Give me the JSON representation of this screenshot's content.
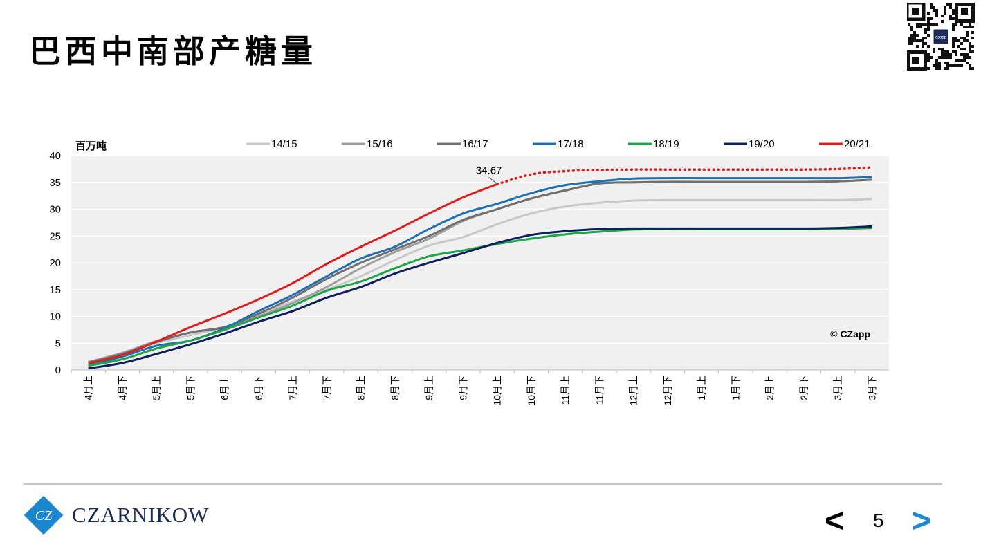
{
  "slide": {
    "title": "巴西中南部产糖量",
    "page_number": "5",
    "prev_label": "<",
    "next_label": ">",
    "brand": "CZARNIKOW",
    "qr_badge": "czapp"
  },
  "chart_data": {
    "type": "line",
    "title": "",
    "xlabel": "",
    "ylabel": "百万吨",
    "ylim": [
      0,
      40
    ],
    "yticks": [
      0,
      5,
      10,
      15,
      20,
      25,
      30,
      35,
      40
    ],
    "grid": true,
    "legend_position": "top",
    "watermark": "© CZapp",
    "categories": [
      "4月上",
      "4月下",
      "5月上",
      "5月下",
      "6月上",
      "6月下",
      "7月上",
      "7月下",
      "8月上",
      "8月下",
      "9月上",
      "9月下",
      "10月上",
      "10月下",
      "11月上",
      "11月下",
      "12月上",
      "12月下",
      "1月上",
      "1月下",
      "2月上",
      "2月下",
      "3月上",
      "3月下"
    ],
    "series": [
      {
        "name": "14/15",
        "color": "#c8c8c8",
        "values": [
          1.5,
          3.0,
          5.0,
          6.5,
          8.0,
          10.2,
          12.8,
          15.0,
          17.5,
          20.5,
          23.2,
          24.8,
          27.2,
          29.2,
          30.5,
          31.2,
          31.6,
          31.7,
          31.7,
          31.7,
          31.7,
          31.7,
          31.7,
          31.9
        ]
      },
      {
        "name": "15/16",
        "color": "#a0a0a0",
        "values": [
          1.5,
          3.2,
          5.4,
          7.0,
          8.0,
          10.0,
          12.5,
          15.5,
          19.0,
          22.0,
          24.5,
          27.8,
          30.0,
          32.0,
          33.5,
          34.8,
          35.0,
          35.1,
          35.1,
          35.1,
          35.1,
          35.1,
          35.2,
          35.5
        ]
      },
      {
        "name": "16/17",
        "color": "#707070",
        "values": [
          1.4,
          3.0,
          5.2,
          7.0,
          8.0,
          10.5,
          13.5,
          17.0,
          20.0,
          22.5,
          25.0,
          28.0,
          30.0,
          32.0,
          33.5,
          34.8,
          35.0,
          35.1,
          35.1,
          35.1,
          35.1,
          35.1,
          35.2,
          35.5
        ]
      },
      {
        "name": "17/18",
        "color": "#1f6fb5",
        "values": [
          0.8,
          2.5,
          4.5,
          5.5,
          7.8,
          11.0,
          14.0,
          17.5,
          20.8,
          23.0,
          26.3,
          29.2,
          31.0,
          33.0,
          34.5,
          35.2,
          35.7,
          35.8,
          35.8,
          35.8,
          35.8,
          35.8,
          35.8,
          36.0
        ]
      },
      {
        "name": "18/19",
        "color": "#1fa64a",
        "values": [
          0.8,
          2.0,
          4.0,
          5.5,
          7.5,
          9.8,
          12.0,
          14.8,
          16.5,
          19.0,
          21.2,
          22.3,
          23.5,
          24.5,
          25.3,
          25.8,
          26.2,
          26.3,
          26.3,
          26.3,
          26.3,
          26.3,
          26.3,
          26.5
        ]
      },
      {
        "name": "19/20",
        "color": "#0d1f5c",
        "values": [
          0.3,
          1.3,
          3.0,
          4.8,
          6.8,
          9.0,
          11.0,
          13.5,
          15.5,
          18.0,
          20.0,
          21.8,
          23.7,
          25.2,
          25.9,
          26.3,
          26.4,
          26.4,
          26.4,
          26.4,
          26.4,
          26.4,
          26.5,
          26.8
        ]
      },
      {
        "name": "20/21",
        "color": "#e21b1b",
        "values": [
          1.2,
          2.8,
          5.3,
          8.0,
          10.5,
          13.2,
          16.2,
          19.8,
          23.0,
          26.0,
          29.2,
          32.2,
          34.67,
          null,
          null,
          null,
          null,
          null,
          null,
          null,
          null,
          null,
          null,
          null
        ],
        "forecast": [
          null,
          null,
          null,
          null,
          null,
          null,
          null,
          null,
          null,
          null,
          null,
          null,
          34.67,
          36.5,
          37.1,
          37.3,
          37.4,
          37.4,
          37.4,
          37.4,
          37.4,
          37.4,
          37.5,
          37.8
        ],
        "annotation": {
          "category": "10月上",
          "value": 34.67,
          "label": "34.67"
        }
      }
    ]
  }
}
